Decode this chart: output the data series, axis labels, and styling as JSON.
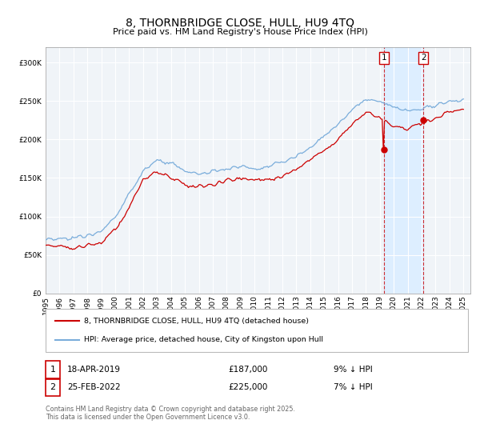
{
  "title": "8, THORNBRIDGE CLOSE, HULL, HU9 4TQ",
  "subtitle": "Price paid vs. HM Land Registry's House Price Index (HPI)",
  "footnote": "Contains HM Land Registry data © Crown copyright and database right 2025.\nThis data is licensed under the Open Government Licence v3.0.",
  "legend1": "8, THORNBRIDGE CLOSE, HULL, HU9 4TQ (detached house)",
  "legend2": "HPI: Average price, detached house, City of Kingston upon Hull",
  "red_color": "#cc0000",
  "blue_color": "#7aaddb",
  "shade_color": "#ddeeff",
  "background_color": "#f0f4f8",
  "ylim": [
    0,
    320000
  ],
  "yticks": [
    0,
    50000,
    100000,
    150000,
    200000,
    250000,
    300000
  ],
  "x_start_year": 1995,
  "x_end_year": 2025,
  "sale1_year": 2019.29,
  "sale1_price": 187000,
  "sale2_year": 2022.12,
  "sale2_price": 225000
}
